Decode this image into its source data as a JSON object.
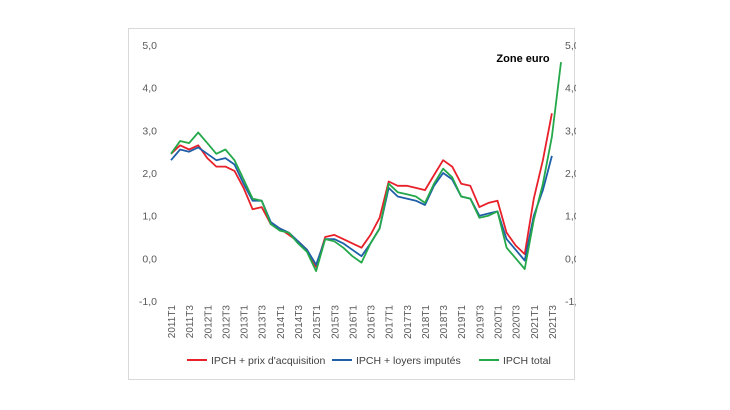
{
  "chart_data": {
    "type": "line",
    "annotation": "Zone euro",
    "ylim": [
      -1,
      5
    ],
    "yticks": [
      "-1,0",
      "0,0",
      "1,0",
      "2,0",
      "3,0",
      "4,0",
      "5,0"
    ],
    "ytick_values": [
      -1,
      0,
      1,
      2,
      3,
      4,
      5
    ],
    "x": [
      "2011T1",
      "2011T2",
      "2011T3",
      "2011T4",
      "2012T1",
      "2012T2",
      "2012T3",
      "2012T4",
      "2013T1",
      "2013T2",
      "2013T3",
      "2013T4",
      "2014T1",
      "2014T2",
      "2014T3",
      "2014T4",
      "2015T1",
      "2015T2",
      "2015T3",
      "2015T4",
      "2016T1",
      "2016T2",
      "2016T3",
      "2016T4",
      "2017T1",
      "2017T2",
      "2017T3",
      "2017T4",
      "2018T1",
      "2018T2",
      "2018T3",
      "2018T4",
      "2019T1",
      "2019T2",
      "2019T3",
      "2019T4",
      "2020T1",
      "2020T2",
      "2020T3",
      "2020T4",
      "2021T1",
      "2021T2",
      "2021T3",
      "2021T4"
    ],
    "xtick_labels": [
      "2011T1",
      "2011T3",
      "2012T1",
      "2012T3",
      "2013T1",
      "2013T3",
      "2014T1",
      "2014T3",
      "2015T1",
      "2015T3",
      "2016T1",
      "2016T3",
      "2017T1",
      "2017T3",
      "2018T1",
      "2018T3",
      "2019T1",
      "2019T3",
      "2020T1",
      "2020T3",
      "2021T1",
      "2021T3"
    ],
    "grid": false,
    "legend_position": "bottom",
    "series": [
      {
        "name": "IPCH + prix d'acquisition",
        "color": "#e8202a",
        "values": [
          2.45,
          2.65,
          2.55,
          2.65,
          2.35,
          2.15,
          2.15,
          2.05,
          1.65,
          1.15,
          1.2,
          0.8,
          0.7,
          0.55,
          0.4,
          0.2,
          -0.2,
          0.5,
          0.55,
          0.45,
          0.35,
          0.25,
          0.55,
          0.95,
          1.8,
          1.7,
          1.7,
          1.65,
          1.6,
          1.95,
          2.3,
          2.15,
          1.75,
          1.7,
          1.2,
          1.3,
          1.35,
          0.6,
          0.3,
          0.1,
          1.4,
          2.3,
          3.4,
          null
        ]
      },
      {
        "name": "IPCH + loyers imputés",
        "color": "#1f5fa8",
        "values": [
          2.3,
          2.55,
          2.5,
          2.6,
          2.45,
          2.3,
          2.35,
          2.2,
          1.75,
          1.35,
          1.35,
          0.85,
          0.7,
          0.6,
          0.4,
          0.2,
          -0.15,
          0.45,
          0.45,
          0.35,
          0.2,
          0.05,
          0.35,
          0.7,
          1.65,
          1.45,
          1.4,
          1.35,
          1.25,
          1.7,
          2.0,
          1.85,
          1.45,
          1.4,
          1.0,
          1.05,
          1.1,
          0.45,
          0.2,
          -0.05,
          1.0,
          1.6,
          2.4,
          null
        ]
      },
      {
        "name": "IPCH total",
        "color": "#24a84a",
        "values": [
          2.45,
          2.75,
          2.7,
          2.95,
          2.7,
          2.45,
          2.55,
          2.3,
          1.85,
          1.4,
          1.35,
          0.8,
          0.65,
          0.6,
          0.35,
          0.15,
          -0.3,
          0.45,
          0.4,
          0.25,
          0.05,
          -0.1,
          0.35,
          0.7,
          1.75,
          1.55,
          1.5,
          1.45,
          1.3,
          1.75,
          2.1,
          1.9,
          1.45,
          1.4,
          0.95,
          1.0,
          1.1,
          0.25,
          0.0,
          -0.25,
          0.9,
          1.75,
          2.85,
          4.6
        ]
      }
    ]
  }
}
